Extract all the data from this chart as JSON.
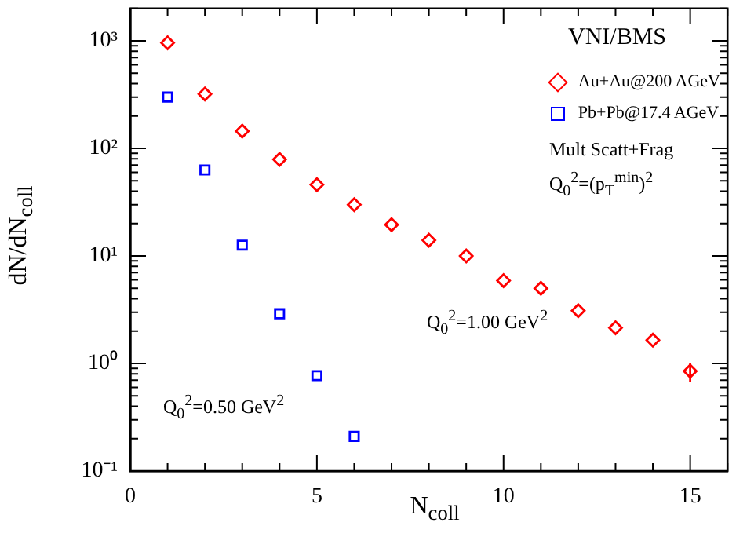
{
  "chart_data": {
    "type": "scatter",
    "xlabel": "N$_{coll}$",
    "ylabel": "dN/dN$_{coll}$",
    "annotations": [
      "VNI/BMS",
      "Mult Scatt+Frag",
      "Q$_{0}$$^{2}$=(p$_{T}$$^{min}$)$^{2}$",
      "Q$_{0}$$^{2}$=1.00 GeV$^{2}$",
      "Q$_{0}$$^{2}$=0.50 GeV$^{2}$"
    ],
    "series": [
      {
        "name": "Au+Au@200 AGeV",
        "color": "#ff0000",
        "marker": "diamond",
        "x": [
          1,
          2,
          3,
          4,
          5,
          6,
          7,
          8,
          9,
          10,
          11,
          12,
          13,
          14,
          15
        ],
        "values": [
          960,
          320,
          145,
          79,
          46,
          30,
          19.5,
          14,
          10,
          5.9,
          5.0,
          3.1,
          2.15,
          1.65,
          0.85
        ],
        "errors": [
          null,
          null,
          null,
          null,
          null,
          null,
          null,
          null,
          null,
          null,
          null,
          null,
          null,
          null,
          [
            0.67,
            1.0
          ]
        ]
      },
      {
        "name": "Pb+Pb@17.4 AGeV",
        "color": "#0000ff",
        "marker": "square",
        "x": [
          1,
          2,
          3,
          4,
          5,
          6
        ],
        "values": [
          300,
          63,
          12.6,
          2.9,
          0.77,
          0.21
        ]
      }
    ],
    "log": "y",
    "xlim": [
      0,
      16
    ],
    "ylim": [
      0.1,
      2000
    ],
    "xticks": [
      0,
      5,
      10,
      15
    ],
    "yticks": [
      {
        "value": 0.1,
        "label": "10⁻¹"
      },
      {
        "value": 1,
        "label": "10⁰"
      },
      {
        "value": 10,
        "label": "10¹"
      },
      {
        "value": 100,
        "label": "10²"
      },
      {
        "value": 1000,
        "label": "10³"
      }
    ],
    "legend": "top right"
  }
}
